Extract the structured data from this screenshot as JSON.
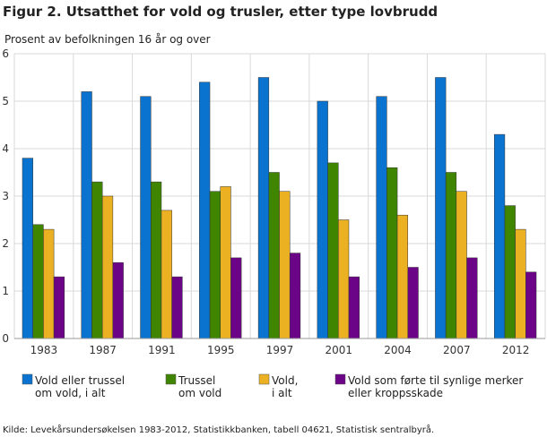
{
  "chart_data": {
    "type": "bar",
    "title": "Figur 2. Utsatthet for vold og trusler, etter type lovbrudd",
    "ylabel": "Prosent av befolkningen 16 år og over",
    "xlabel": "",
    "ylim": [
      0,
      6
    ],
    "yticks": [
      "0",
      "1",
      "2",
      "3",
      "4",
      "5",
      "6"
    ],
    "grid": true,
    "legend_position": "bottom",
    "categories": [
      "1983",
      "1987",
      "1991",
      "1995",
      "1997",
      "2001",
      "2004",
      "2007",
      "2012"
    ],
    "series": [
      {
        "name": "Vold eller trussel om vold, i alt",
        "legend_lines": [
          "Vold eller trussel",
          "om vold, i alt"
        ],
        "color": "#0a73d0",
        "values": [
          3.8,
          5.2,
          5.1,
          5.4,
          5.5,
          5.0,
          5.1,
          5.5,
          4.3
        ]
      },
      {
        "name": "Trussel om vold",
        "legend_lines": [
          "Trussel",
          "om vold"
        ],
        "color": "#3f8500",
        "values": [
          2.4,
          3.3,
          3.3,
          3.1,
          3.5,
          3.7,
          3.6,
          3.5,
          2.8
        ]
      },
      {
        "name": "Vold, i alt",
        "legend_lines": [
          "Vold,",
          "i alt"
        ],
        "color": "#ebb122",
        "values": [
          2.3,
          3.0,
          2.7,
          3.2,
          3.1,
          2.5,
          2.6,
          3.1,
          2.3
        ]
      },
      {
        "name": "Vold som førte til synlige merker eller kroppsskade",
        "legend_lines": [
          "Vold som førte til synlige merker",
          "eller kroppsskade"
        ],
        "color": "#6c0487",
        "values": [
          1.3,
          1.6,
          1.3,
          1.7,
          1.8,
          1.3,
          1.5,
          1.7,
          1.4
        ]
      }
    ],
    "source": "Kilde: Levekårsundersøkelsen 1983-2012, Statistikkbanken, tabell 04621, Statistisk sentralbyrå."
  }
}
